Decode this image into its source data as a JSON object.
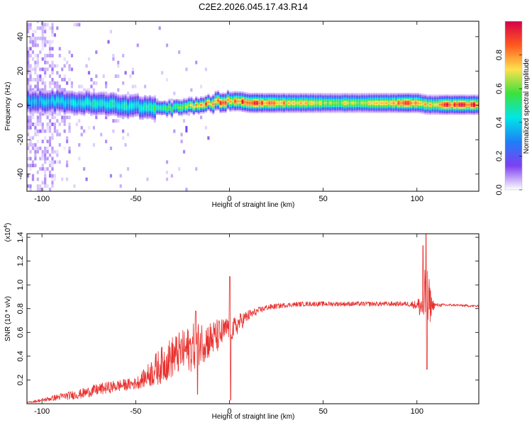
{
  "title": "C2E2.2026.045.17.43.R14",
  "chart_data": [
    {
      "type": "heatmap",
      "xlabel": "Height of straight line (km)",
      "ylabel": "Frequency (Hz)",
      "xlim": [
        -108,
        133
      ],
      "ylim": [
        -50,
        49
      ],
      "x_ticks": [
        -100,
        -50,
        0,
        50,
        100
      ],
      "x_tick_labels": [
        "-100",
        "-50",
        "0",
        "50",
        "100"
      ],
      "y_ticks": [
        -40,
        -20,
        0,
        20,
        40
      ],
      "y_tick_labels": [
        "-40",
        "-20",
        "0",
        "20",
        "40"
      ],
      "ridge": {
        "x": [
          -108,
          -95,
          -80,
          -65,
          -50,
          -40,
          -30,
          -22,
          -15,
          -10,
          -5,
          0,
          5,
          10,
          20,
          40,
          60,
          80,
          100,
          105,
          115,
          133
        ],
        "frequency": [
          2,
          2,
          1,
          0,
          -1,
          -2,
          -2,
          -1,
          0,
          1,
          2,
          2,
          2,
          1,
          1,
          1,
          1,
          1,
          1,
          0,
          0,
          0
        ],
        "amplitude": [
          0.35,
          0.4,
          0.45,
          0.5,
          0.45,
          0.55,
          0.6,
          0.7,
          0.9,
          0.8,
          0.9,
          0.75,
          0.95,
          1.0,
          0.85,
          0.75,
          0.7,
          0.75,
          0.95,
          0.7,
          0.95,
          0.95
        ]
      },
      "colorbar": {
        "label": "Normalized spectral amplitude",
        "range": [
          0,
          1
        ],
        "ticks": [
          0,
          0.2,
          0.4,
          0.6,
          0.8
        ],
        "tick_labels": [
          "0.0",
          "0.2",
          "0.4",
          "0.6",
          "0.8"
        ],
        "colormap": [
          "#ffffff",
          "#7e3ff2",
          "#1e7ff7",
          "#00e6e6",
          "#3ce13c",
          "#ffe14d",
          "#ff5a1e",
          "#d6004b"
        ]
      }
    },
    {
      "type": "line",
      "xlabel": "Height of straight line (km)",
      "ylabel": "SNR (10 * v/v)",
      "y_multiplier_label": "(x10",
      "y_multiplier_exponent": "4",
      "xlim": [
        -108,
        133
      ],
      "ylim": [
        0,
        1.43
      ],
      "x_ticks": [
        -100,
        -50,
        0,
        50,
        100
      ],
      "x_tick_labels": [
        "-100",
        "-50",
        "0",
        "50",
        "100"
      ],
      "y_ticks": [
        0.2,
        0.4,
        0.6,
        0.8,
        1.0,
        1.2,
        1.4
      ],
      "y_tick_labels": [
        "0.2",
        "0.4",
        "0.6",
        "0.8",
        "1.0",
        "1.2",
        "1.4"
      ],
      "series_color": "#e8312e",
      "series": [
        {
          "name": "SNR",
          "x": [
            -108,
            -100,
            -90,
            -80,
            -70,
            -60,
            -50,
            -45,
            -40,
            -35,
            -30,
            -25,
            -20,
            -15,
            -10,
            -5,
            -2,
            0,
            2,
            5,
            10,
            15,
            20,
            30,
            40,
            50,
            60,
            70,
            80,
            90,
            95,
            100,
            102,
            104,
            105,
            106,
            108,
            110,
            120,
            133
          ],
          "y": [
            0.01,
            0.03,
            0.06,
            0.08,
            0.12,
            0.15,
            0.17,
            0.22,
            0.28,
            0.34,
            0.4,
            0.44,
            0.47,
            0.52,
            0.54,
            0.58,
            0.62,
            0.66,
            0.62,
            0.68,
            0.74,
            0.78,
            0.81,
            0.83,
            0.84,
            0.84,
            0.84,
            0.84,
            0.84,
            0.84,
            0.84,
            0.83,
            0.82,
            0.8,
            0.84,
            0.84,
            0.83,
            0.83,
            0.83,
            0.82
          ],
          "noise": [
            0.005,
            0.015,
            0.03,
            0.04,
            0.05,
            0.05,
            0.05,
            0.08,
            0.14,
            0.16,
            0.18,
            0.18,
            0.2,
            0.18,
            0.16,
            0.14,
            0.1,
            0.12,
            0.1,
            0.08,
            0.05,
            0.03,
            0.025,
            0.02,
            0.02,
            0.02,
            0.02,
            0.02,
            0.02,
            0.02,
            0.02,
            0.04,
            0.12,
            0.3,
            0.4,
            0.28,
            0.06,
            0.015,
            0.01,
            0.01
          ],
          "spikes": [
            {
              "x": -18,
              "y": 0.78
            },
            {
              "x": -17,
              "y": 0.08
            },
            {
              "x": 0.2,
              "y": 1.07
            },
            {
              "x": 0.6,
              "y": 0.03
            },
            {
              "x": 103.3,
              "y": 1.33
            },
            {
              "x": 104.8,
              "y": 1.43
            },
            {
              "x": 105.3,
              "y": 0.29
            }
          ]
        }
      ]
    }
  ]
}
